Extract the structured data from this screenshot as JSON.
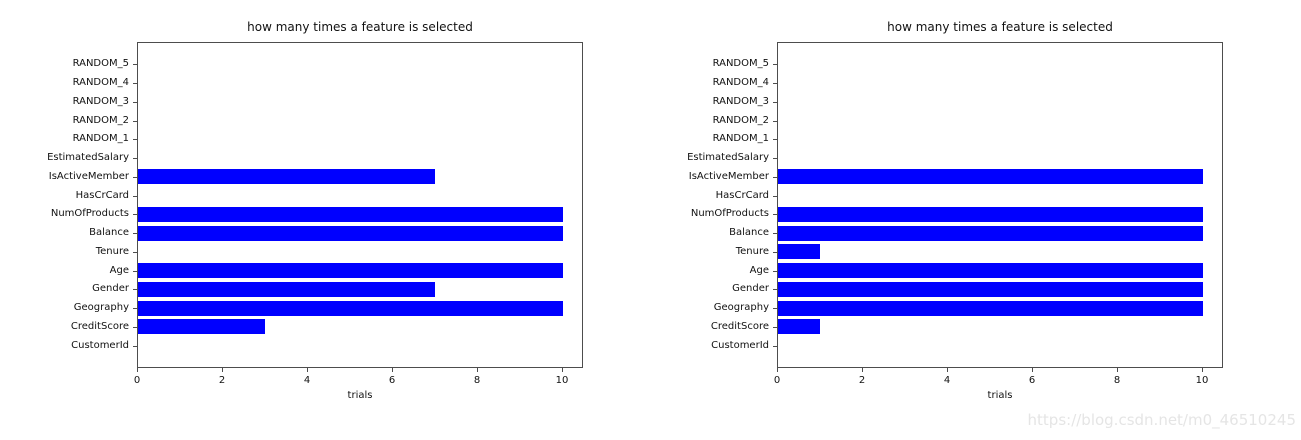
{
  "watermark": "https://blog.csdn.net/m0_46510245",
  "chart_data": [
    {
      "type": "bar",
      "orientation": "horizontal",
      "title": "how many times a feature is selected",
      "xlabel": "trials",
      "ylabel": "",
      "order": "top-to-bottom",
      "categories": [
        "RANDOM_5",
        "RANDOM_4",
        "RANDOM_3",
        "RANDOM_2",
        "RANDOM_1",
        "EstimatedSalary",
        "IsActiveMember",
        "HasCrCard",
        "NumOfProducts",
        "Balance",
        "Tenure",
        "Age",
        "Gender",
        "Geography",
        "CreditScore",
        "CustomerId"
      ],
      "values": [
        0,
        0,
        0,
        0,
        0,
        0,
        7,
        0,
        10,
        10,
        0,
        10,
        7,
        10,
        3,
        0
      ],
      "xlim": [
        0,
        10.5
      ],
      "xticks": [
        0,
        2,
        4,
        6,
        8,
        10
      ],
      "bar_color": "#0000ff",
      "grid": false
    },
    {
      "type": "bar",
      "orientation": "horizontal",
      "title": "how many times a feature is selected",
      "xlabel": "trials",
      "ylabel": "",
      "order": "top-to-bottom",
      "categories": [
        "RANDOM_5",
        "RANDOM_4",
        "RANDOM_3",
        "RANDOM_2",
        "RANDOM_1",
        "EstimatedSalary",
        "IsActiveMember",
        "HasCrCard",
        "NumOfProducts",
        "Balance",
        "Tenure",
        "Age",
        "Gender",
        "Geography",
        "CreditScore",
        "CustomerId"
      ],
      "values": [
        0,
        0,
        0,
        0,
        0,
        0,
        10,
        0,
        10,
        10,
        1,
        10,
        10,
        10,
        1,
        0
      ],
      "xlim": [
        0,
        10.5
      ],
      "xticks": [
        0,
        2,
        4,
        6,
        8,
        10
      ],
      "bar_color": "#0000ff",
      "grid": false
    }
  ]
}
